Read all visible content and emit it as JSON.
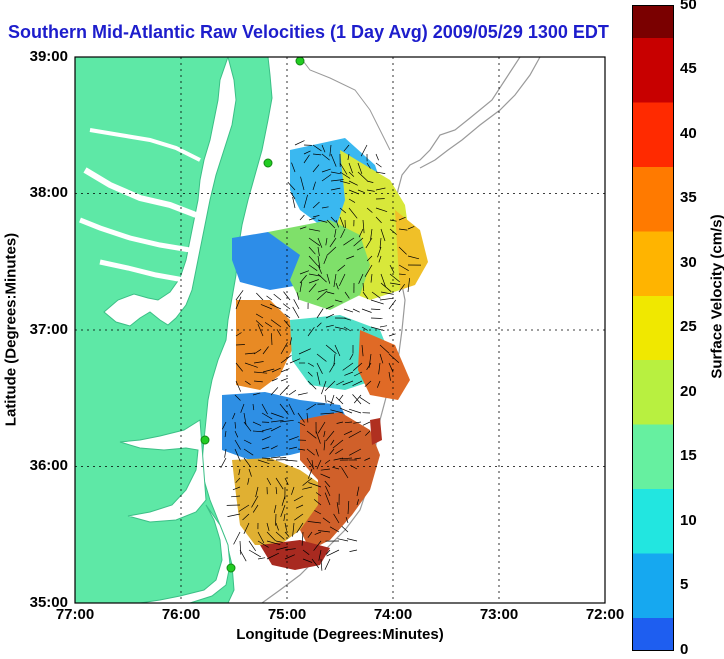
{
  "title": "Southern Mid-Atlantic Raw Velocities (1 Day Avg) 2009/05/29 1300 EDT",
  "axes": {
    "xlabel": "Longitude (Degrees:Minutes)",
    "ylabel": "Latitude (Degrees:Minutes)",
    "x_ticks": [
      "77:00",
      "76:00",
      "75:00",
      "74:00",
      "73:00",
      "72:00"
    ],
    "y_ticks": [
      "39:00",
      "38:00",
      "37:00",
      "36:00",
      "35:00"
    ]
  },
  "colorbar": {
    "label": "Surface Velocity (cm/s)",
    "ticks": [
      "50",
      "45",
      "40",
      "35",
      "30",
      "25",
      "20",
      "15",
      "10",
      "5",
      "0"
    ],
    "min": 0,
    "max": 50
  },
  "colors": {
    "land": "#5ee8a6",
    "water": "#ffffff",
    "title": "#1d1dcc",
    "grid": "#000000",
    "bathymetry": "#9a9a9a",
    "station": "#22cc22"
  }
}
